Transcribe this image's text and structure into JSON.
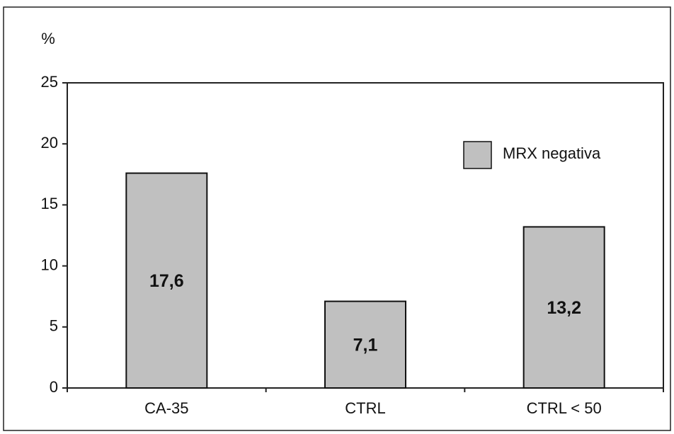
{
  "chart_data": {
    "type": "bar",
    "y_label": "%",
    "categories": [
      "CA-35",
      "CTRL",
      "CTRL < 50"
    ],
    "series": [
      {
        "name": "MRX negativa",
        "color": "#c0c0c0",
        "values": [
          17.6,
          7.1,
          13.2
        ],
        "value_labels": [
          "17,6",
          "7,1",
          "13,2"
        ]
      }
    ],
    "ylim": [
      0,
      25
    ],
    "yticks": [
      0,
      5,
      10,
      15,
      20,
      25
    ],
    "grid": false,
    "legend": "upper-right"
  }
}
